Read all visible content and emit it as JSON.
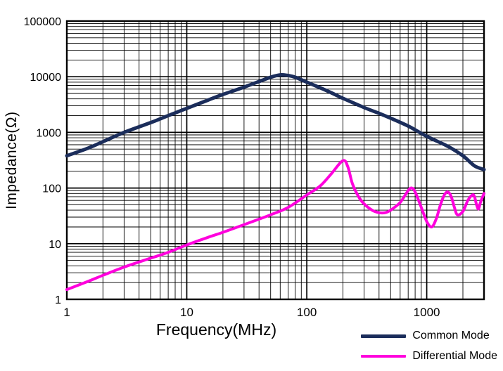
{
  "chart_data": {
    "type": "line",
    "title": "",
    "xlabel": "Frequency(MHz)",
    "ylabel": "Impedance(Ω)",
    "x_scale": "log",
    "y_scale": "log",
    "xlim": [
      1,
      3000
    ],
    "ylim": [
      1,
      100000
    ],
    "x_ticks": [
      "1",
      "10",
      "100",
      "1000"
    ],
    "y_ticks": [
      "1",
      "10",
      "100",
      "1000",
      "10000",
      "100000"
    ],
    "grid": true,
    "grid_color": "#000000",
    "legend_position": "bottom-right",
    "series": [
      {
        "name": "Common Mode",
        "color": "#1b2d5b",
        "width": 5,
        "points": [
          [
            1,
            380
          ],
          [
            1.5,
            520
          ],
          [
            2,
            680
          ],
          [
            3,
            1000
          ],
          [
            5,
            1500
          ],
          [
            7,
            2000
          ],
          [
            10,
            2700
          ],
          [
            15,
            3800
          ],
          [
            20,
            4800
          ],
          [
            30,
            6500
          ],
          [
            40,
            8200
          ],
          [
            50,
            9800
          ],
          [
            60,
            10800
          ],
          [
            70,
            10500
          ],
          [
            80,
            9800
          ],
          [
            100,
            8000
          ],
          [
            150,
            5500
          ],
          [
            200,
            4100
          ],
          [
            300,
            2800
          ],
          [
            400,
            2200
          ],
          [
            500,
            1800
          ],
          [
            700,
            1300
          ],
          [
            1000,
            850
          ],
          [
            1500,
            560
          ],
          [
            2000,
            380
          ],
          [
            2500,
            250
          ],
          [
            3000,
            215
          ]
        ]
      },
      {
        "name": "Differential Mode",
        "color": "#ff00dd",
        "width": 4,
        "points": [
          [
            1,
            1.5
          ],
          [
            1.5,
            2.1
          ],
          [
            2,
            2.7
          ],
          [
            3,
            3.8
          ],
          [
            5,
            5.5
          ],
          [
            7,
            7
          ],
          [
            10,
            9.5
          ],
          [
            15,
            13
          ],
          [
            20,
            16
          ],
          [
            30,
            22
          ],
          [
            50,
            33
          ],
          [
            70,
            45
          ],
          [
            100,
            75
          ],
          [
            130,
            110
          ],
          [
            160,
            180
          ],
          [
            200,
            310
          ],
          [
            220,
            240
          ],
          [
            240,
            120
          ],
          [
            270,
            70
          ],
          [
            300,
            52
          ],
          [
            350,
            40
          ],
          [
            400,
            36
          ],
          [
            450,
            36
          ],
          [
            500,
            40
          ],
          [
            600,
            55
          ],
          [
            700,
            90
          ],
          [
            750,
            100
          ],
          [
            800,
            85
          ],
          [
            900,
            45
          ],
          [
            1000,
            25
          ],
          [
            1100,
            20
          ],
          [
            1200,
            28
          ],
          [
            1300,
            50
          ],
          [
            1400,
            75
          ],
          [
            1500,
            85
          ],
          [
            1600,
            70
          ],
          [
            1700,
            45
          ],
          [
            1800,
            33
          ],
          [
            2000,
            38
          ],
          [
            2200,
            60
          ],
          [
            2400,
            75
          ],
          [
            2500,
            70
          ],
          [
            2600,
            50
          ],
          [
            2700,
            42
          ],
          [
            2800,
            55
          ],
          [
            3000,
            80
          ]
        ]
      }
    ]
  }
}
